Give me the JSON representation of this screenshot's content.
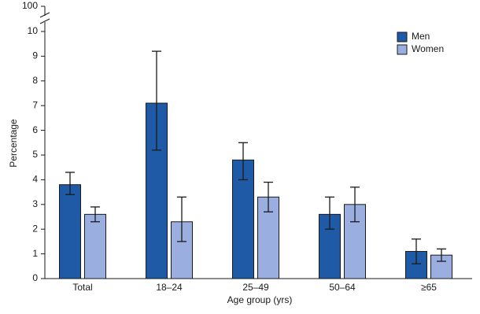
{
  "chart_data": {
    "type": "bar",
    "x_label": "Age group (yrs)",
    "y_label": "Percentage",
    "categories": [
      "Total",
      "18–24",
      "25–49",
      "50–64",
      "≥65"
    ],
    "series": [
      {
        "name": "Men",
        "color": "#1f5aa6",
        "values": [
          3.8,
          7.1,
          4.8,
          2.6,
          1.1
        ],
        "ci_low": [
          3.4,
          5.2,
          4.0,
          2.0,
          0.6
        ],
        "ci_high": [
          4.3,
          9.2,
          5.5,
          3.3,
          1.6
        ]
      },
      {
        "name": "Women",
        "color": "#9aaee0",
        "values": [
          2.6,
          2.3,
          3.3,
          3.0,
          0.95
        ],
        "ci_low": [
          2.3,
          1.5,
          2.7,
          2.3,
          0.7
        ],
        "ci_high": [
          2.9,
          3.3,
          3.9,
          3.7,
          1.2
        ]
      }
    ],
    "ylim": [
      0,
      10
    ],
    "yticks": [
      0,
      1,
      2,
      3,
      4,
      5,
      6,
      7,
      8,
      9,
      10,
      100
    ],
    "axis_break": true,
    "legend": "upper-right"
  }
}
